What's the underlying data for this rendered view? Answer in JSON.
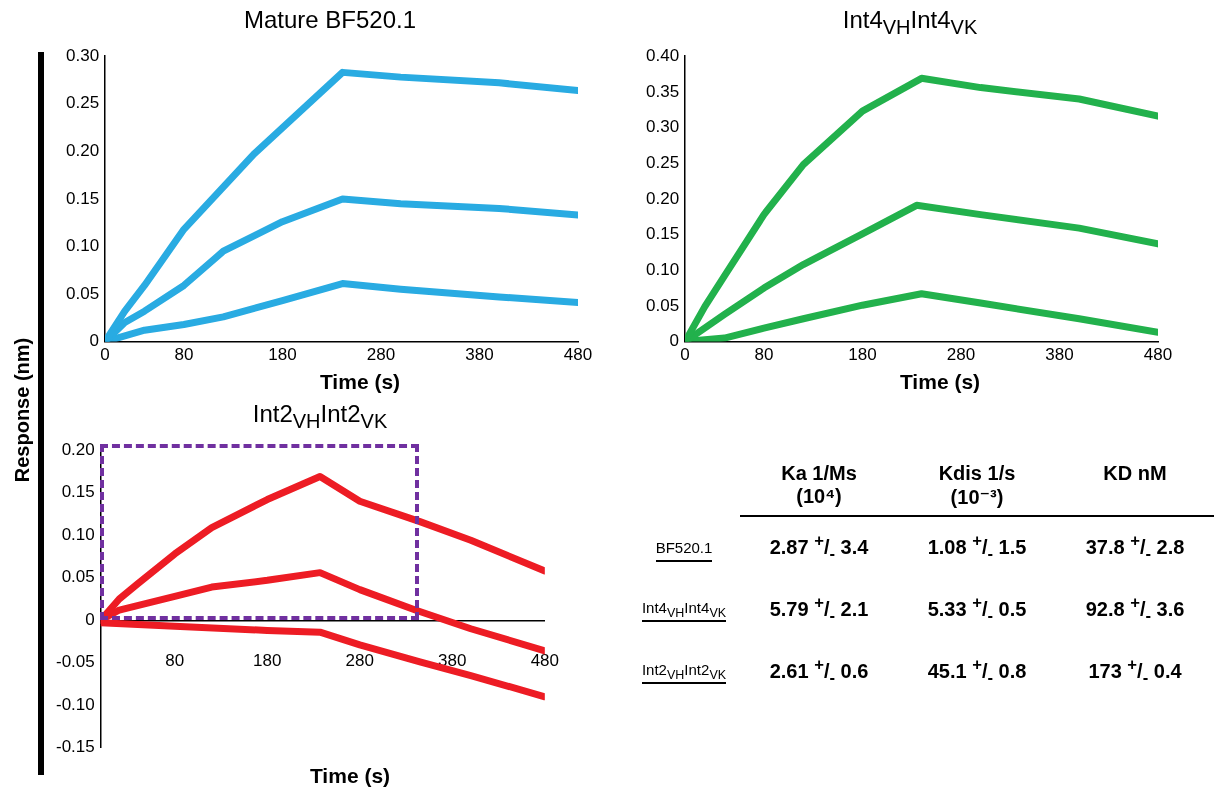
{
  "chart_data": [
    {
      "type": "line",
      "title": "Mature BF520.1",
      "xlabel": "Time (s)",
      "ylabel": "Response (nm)",
      "marker": "none",
      "line_style": "solid",
      "xlim": [
        0,
        480
      ],
      "xticks": [
        {
          "value": 0,
          "label": "0"
        },
        80,
        180,
        280,
        380,
        480
      ],
      "ylim": [
        0,
        0.3
      ],
      "yticks": [
        {
          "value": 0,
          "label": "0"
        },
        {
          "value": 0.05,
          "label": "0.05"
        },
        {
          "value": 0.1,
          "label": "0.10"
        },
        {
          "value": 0.15,
          "label": "0.15"
        },
        {
          "value": 0.2,
          "label": "0.20"
        },
        {
          "value": 0.25,
          "label": "0.25"
        },
        {
          "value": 0.3,
          "label": "0.30"
        }
      ],
      "series": [
        {
          "color": "#29abe2",
          "x": [
            0,
            20,
            40,
            80,
            151,
            241,
            300,
            400,
            480
          ],
          "values": [
            0,
            0.032,
            0.059,
            0.118,
            0.197,
            0.283,
            0.278,
            0.272,
            0.264
          ]
        },
        {
          "color": "#29abe2",
          "x": [
            0,
            20,
            40,
            80,
            120,
            180,
            241,
            300,
            400,
            480
          ],
          "values": [
            0,
            0.02,
            0.032,
            0.059,
            0.095,
            0.126,
            0.15,
            0.145,
            0.14,
            0.133
          ]
        },
        {
          "color": "#29abe2",
          "x": [
            0,
            40,
            80,
            120,
            180,
            241,
            300,
            400,
            480
          ],
          "values": [
            0,
            0.012,
            0.018,
            0.026,
            0.043,
            0.061,
            0.055,
            0.047,
            0.041
          ]
        }
      ]
    },
    {
      "type": "line",
      "title": "Int4$_{VH}$Int4$_{VK}$",
      "xlabel": "Time (s)",
      "marker": "none",
      "line_style": "solid",
      "xlim": [
        0,
        480
      ],
      "xticks": [
        {
          "value": 0,
          "label": "0"
        },
        80,
        180,
        280,
        380,
        480
      ],
      "ylim": [
        0,
        0.4
      ],
      "yticks": [
        {
          "value": 0,
          "label": "0"
        },
        {
          "value": 0.05,
          "label": "0.05"
        },
        {
          "value": 0.1,
          "label": "0.10"
        },
        {
          "value": 0.15,
          "label": "0.15"
        },
        {
          "value": 0.2,
          "label": "0.20"
        },
        {
          "value": 0.25,
          "label": "0.25"
        },
        {
          "value": 0.3,
          "label": "0.30"
        },
        {
          "value": 0.35,
          "label": "0.35"
        },
        {
          "value": 0.4,
          "label": "0.40"
        }
      ],
      "series": [
        {
          "color": "#22b14c",
          "x": [
            0,
            20,
            40,
            80,
            120,
            180,
            240,
            300,
            400,
            480
          ],
          "values": [
            0,
            0.049,
            0.092,
            0.178,
            0.248,
            0.323,
            0.369,
            0.356,
            0.34,
            0.316
          ]
        },
        {
          "color": "#22b14c",
          "x": [
            0,
            40,
            80,
            120,
            180,
            235,
            300,
            400,
            480
          ],
          "values": [
            0,
            0.038,
            0.075,
            0.108,
            0.151,
            0.191,
            0.178,
            0.159,
            0.137
          ]
        },
        {
          "color": "#22b14c",
          "x": [
            0,
            40,
            80,
            120,
            180,
            240,
            300,
            400,
            480
          ],
          "values": [
            0,
            0.005,
            0.019,
            0.032,
            0.051,
            0.067,
            0.054,
            0.032,
            0.013
          ]
        }
      ]
    },
    {
      "type": "line",
      "title": "Int2$_{VH}$Int2$_{VK}$",
      "xlabel": "Time (s)",
      "marker": "none",
      "line_style": "solid",
      "xlim": [
        0,
        480
      ],
      "xticks": [
        80,
        180,
        280,
        380,
        480
      ],
      "ylim": [
        -0.15,
        0.2
      ],
      "yticks": [
        {
          "value": -0.15,
          "label": "-0.15"
        },
        {
          "value": -0.1,
          "label": "-0.10"
        },
        {
          "value": -0.05,
          "label": "-0.05"
        },
        {
          "value": 0,
          "label": "0"
        },
        {
          "value": 0.05,
          "label": "0.05"
        },
        {
          "value": 0.1,
          "label": "0.10"
        },
        {
          "value": 0.15,
          "label": "0.15"
        },
        {
          "value": 0.2,
          "label": "0.20"
        }
      ],
      "series": [
        {
          "color": "#ed1c24",
          "x": [
            0,
            20,
            40,
            80,
            120,
            180,
            237,
            280,
            345,
            400,
            480
          ],
          "values": [
            0,
            0.025,
            0.043,
            0.078,
            0.109,
            0.142,
            0.169,
            0.14,
            0.116,
            0.094,
            0.058
          ]
        },
        {
          "color": "#ed1c24",
          "x": [
            0,
            20,
            80,
            120,
            180,
            237,
            280,
            340,
            400,
            480
          ],
          "values": [
            0,
            0.012,
            0.028,
            0.039,
            0.047,
            0.056,
            0.036,
            0.012,
            -0.01,
            -0.036
          ]
        },
        {
          "color": "#ed1c24",
          "x": [
            0,
            80,
            180,
            237,
            280,
            345,
            400,
            480
          ],
          "values": [
            -0.003,
            -0.007,
            -0.012,
            -0.014,
            -0.029,
            -0.049,
            -0.065,
            -0.09
          ]
        }
      ]
    },
    {
      "type": "other",
      "categories": [
        "Ka 1/Ms (10⁴)",
        "Kdis 1/s (10⁻³)",
        "KD nM"
      ],
      "y_categories": [
        "BF520.1",
        "Int4$_{VH}$Int4$_{VK}$",
        "Int2$_{VH}$Int2$_{VK}$"
      ],
      "cell_labels": [
        [
          "2.87 $^{+}$/$_{-}$ 3.4",
          "1.08 $^{+}$/$_{-}$ 1.5",
          "37.8 $^{+}$/$_{-}$ 2.8"
        ],
        [
          "5.79 $^{+}$/$_{-}$ 2.1",
          "5.33 $^{+}$/$_{-}$ 0.5",
          "92.8 $^{+}$/$_{-}$ 3.6"
        ],
        [
          "2.61 $^{+}$/$_{-}$ 0.6",
          "45.1 $^{+}$/$_{-}$ 0.8",
          "173 $^{+}$/$_{-}$ 0.4"
        ]
      ]
    }
  ]
}
